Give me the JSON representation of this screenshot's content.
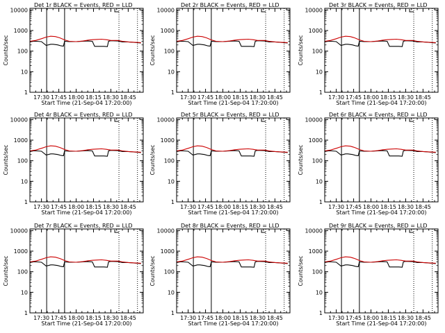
{
  "chart_data": {
    "type": "line",
    "layout": "3x3 grid",
    "common": {
      "xlabel": "Start Time (21-Sep-04 17:20:00)",
      "ylabel": "Counts/sec",
      "x_tick_labels": [
        "17:30",
        "17:45",
        "18:00",
        "18:15",
        "18:30",
        "18:45"
      ],
      "x_tick_minutes": [
        10,
        25,
        40,
        55,
        70,
        85
      ],
      "xlim_minutes_from_start": [
        0,
        98
      ],
      "y_scale": "log",
      "ylim": [
        1,
        12000
      ],
      "y_tick_labels": [
        "1",
        "10",
        "100",
        "1000",
        "10000"
      ],
      "y_tick_values": [
        1,
        10,
        100,
        1000,
        10000
      ],
      "solid_vlines_minutes": [
        14.5,
        30
      ],
      "dotted_vlines_minutes": [
        77,
        93
      ],
      "series": [
        {
          "name": "Events",
          "color": "#000000",
          "x": [
            0,
            3,
            6,
            10,
            14,
            16,
            18,
            20,
            24,
            27,
            29,
            30,
            34,
            40,
            46,
            50,
            54,
            56,
            57,
            60,
            64,
            67,
            68,
            70,
            76,
            80,
            85,
            90,
            96
          ],
          "values": [
            280,
            300,
            300,
            290,
            190,
            200,
            215,
            215,
            200,
            180,
            175,
            300,
            290,
            290,
            300,
            310,
            300,
            170,
            170,
            170,
            170,
            165,
            300,
            320,
            310,
            280,
            280,
            265,
            250
          ]
        },
        {
          "name": "LLD",
          "color": "#cc0000",
          "x": [
            0,
            5,
            10,
            14,
            18,
            22,
            26,
            30,
            34,
            40,
            46,
            50,
            54,
            58,
            62,
            66,
            70,
            76,
            80,
            85,
            90,
            96
          ],
          "values": [
            300,
            330,
            400,
            480,
            530,
            510,
            440,
            350,
            300,
            290,
            310,
            340,
            360,
            370,
            380,
            360,
            330,
            330,
            300,
            280,
            270,
            260
          ]
        }
      ]
    },
    "panels": [
      {
        "title": "Det 1r BLACK = Events, RED = LLD"
      },
      {
        "title": "Det 2r BLACK = Events, RED = LLD"
      },
      {
        "title": "Det 3r BLACK = Events, RED = LLD"
      },
      {
        "title": "Det 4r BLACK = Events, RED = LLD"
      },
      {
        "title": "Det 5r BLACK = Events, RED = LLD"
      },
      {
        "title": "Det 6r BLACK = Events, RED = LLD"
      },
      {
        "title": "Det 7r BLACK = Events, RED = LLD"
      },
      {
        "title": "Det 8r BLACK = Events, RED = LLD"
      },
      {
        "title": "Det 9r BLACK = Events, RED = LLD"
      }
    ]
  }
}
